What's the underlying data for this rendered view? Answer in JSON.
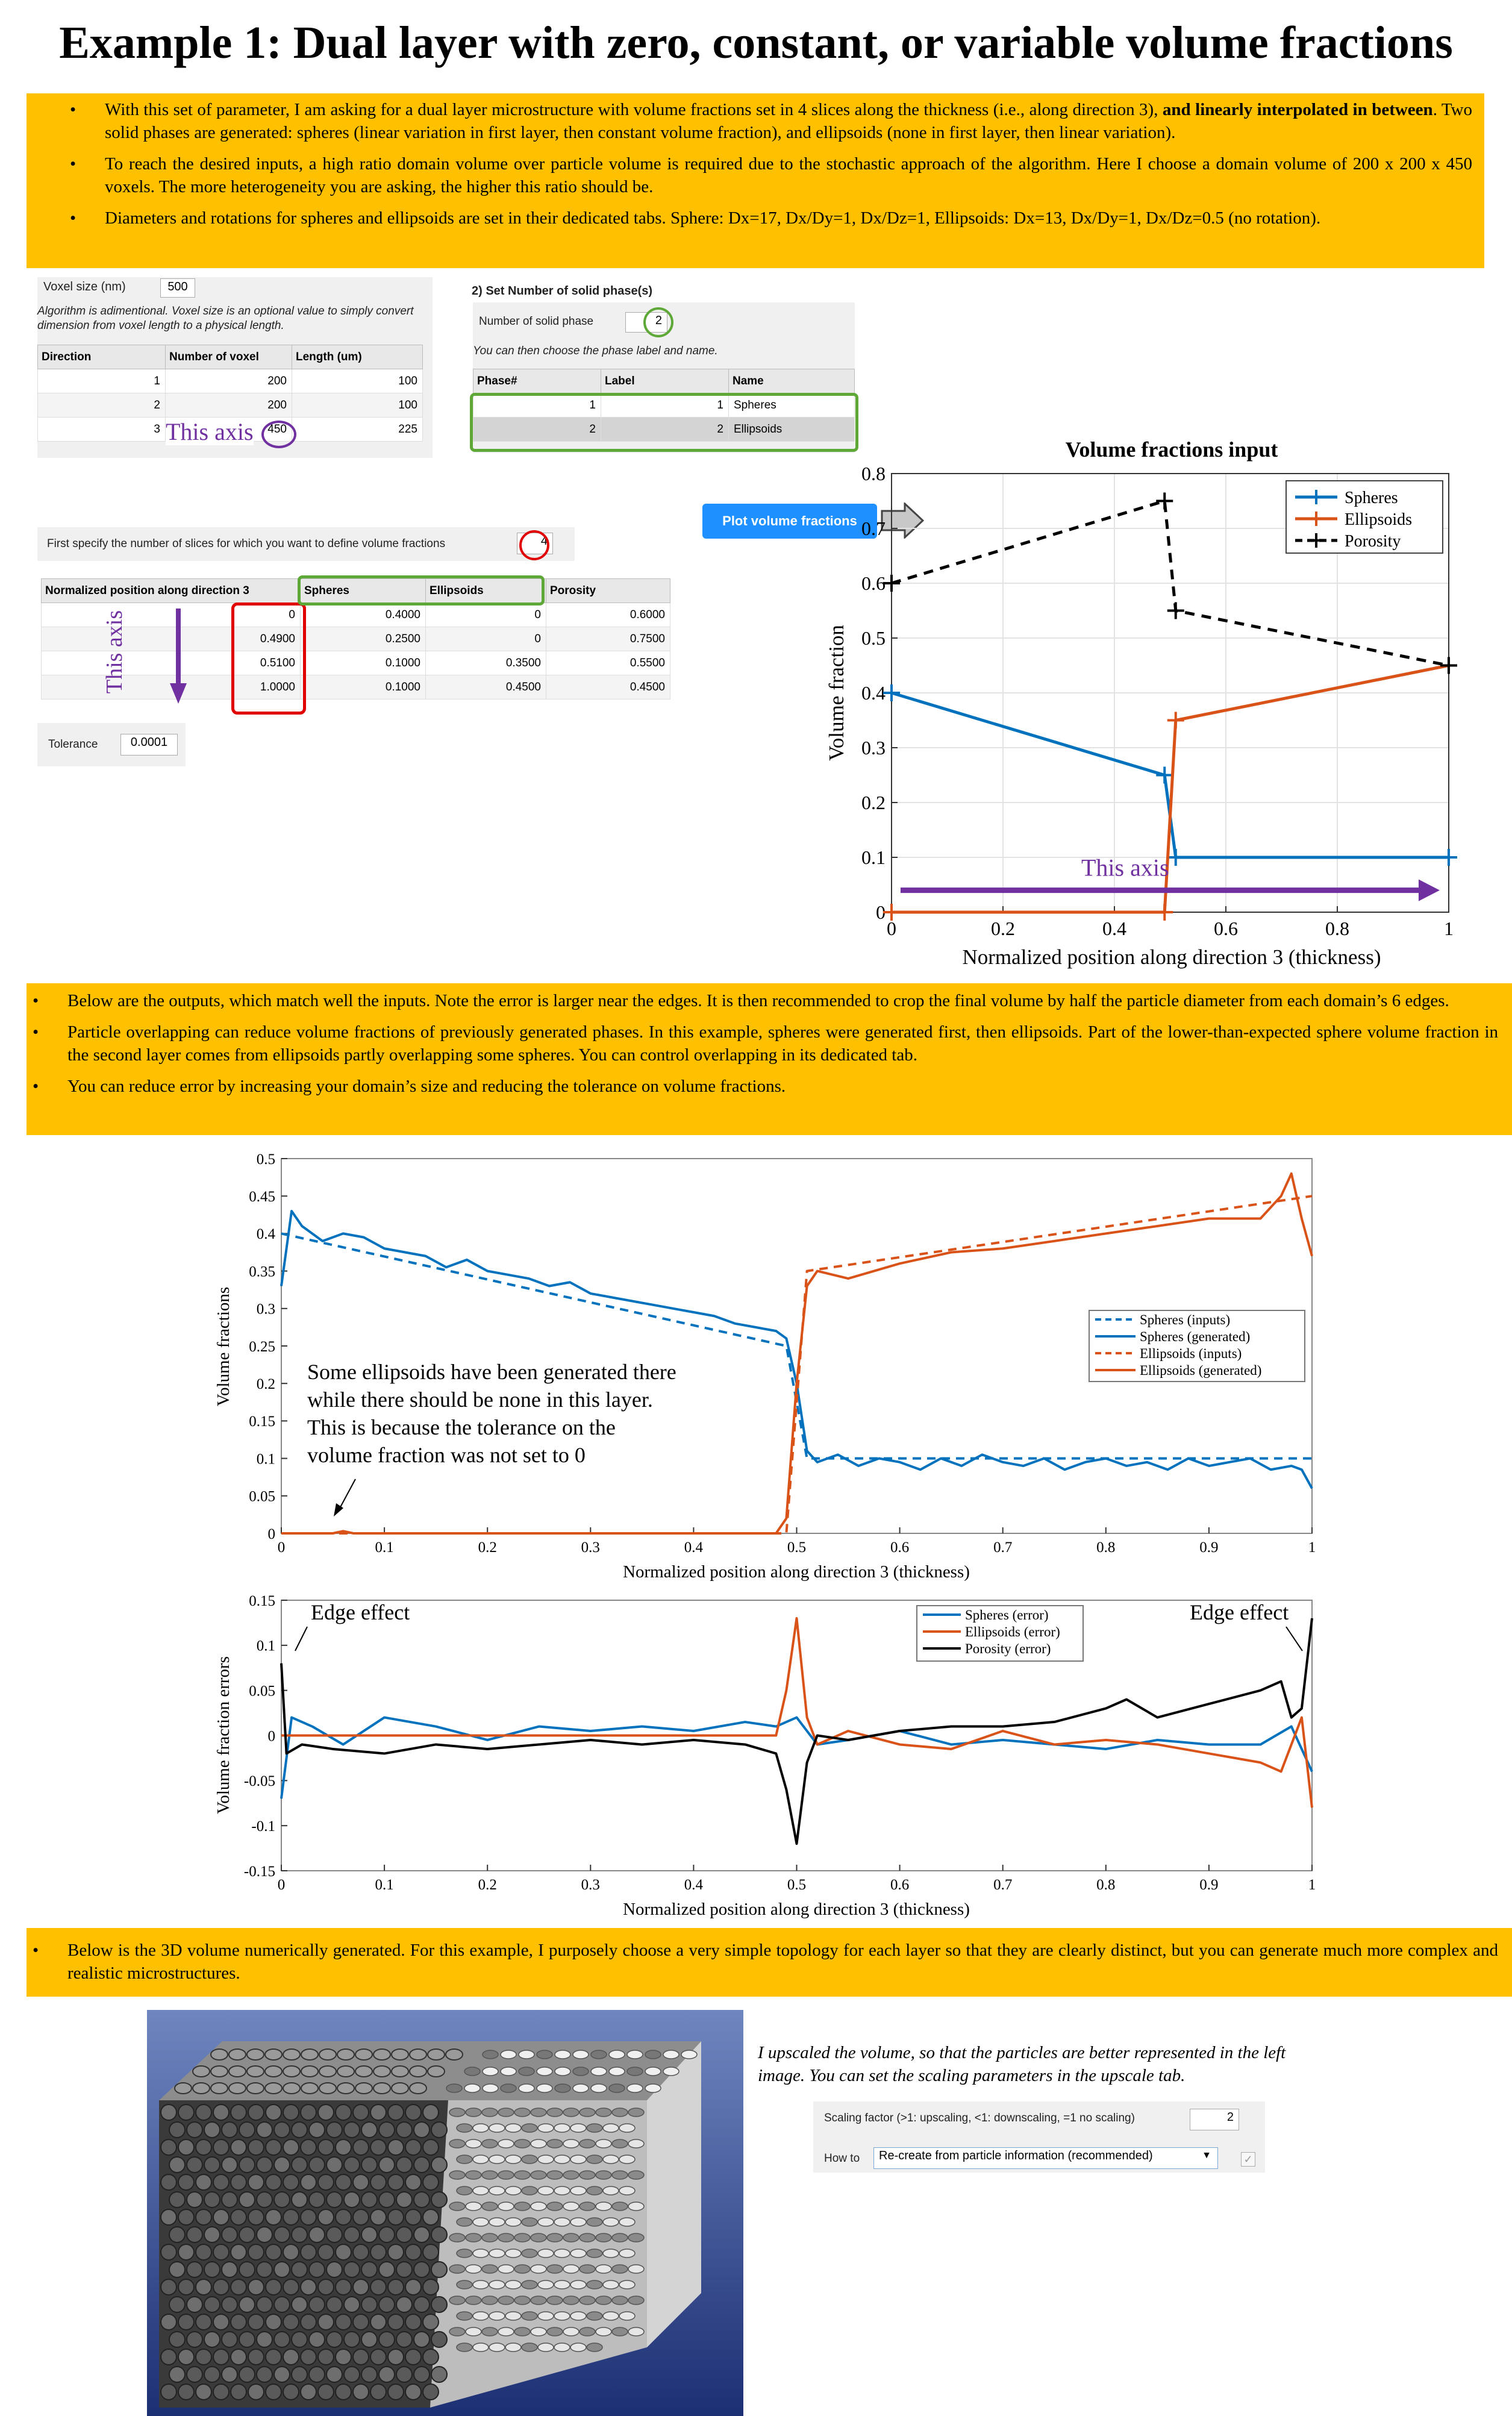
{
  "title": "Example 1: Dual layer with zero, constant, or variable volume fractions",
  "box1": {
    "b1_pre": "With this set of parameter, I am asking for a dual layer microstructure with volume fractions set in 4 slices along the thickness (i.e., along direction 3), ",
    "b1_bold": "and linearly interpolated in between",
    "b1_post": ". Two solid phases are generated: spheres (linear variation in first layer, then constant volume fraction), and ellipsoids (none in first layer, then linear variation).",
    "b2": "To reach the desired inputs, a high ratio domain volume over particle volume is required due to the stochastic approach of the algorithm. Here I choose a domain volume of 200 x 200 x 450 voxels. The more heterogeneity you are asking, the higher this ratio should be.",
    "b3": "Diameters and rotations for spheres and ellipsoids are set in their dedicated tabs. Sphere: Dx=17, Dx/Dy=1, Dx/Dz=1, Ellipsoids: Dx=13, Dx/Dy=1, Dx/Dz=0.5 (no rotation)."
  },
  "voxel": {
    "size_label": "Voxel size  (nm)",
    "size_value": "500",
    "note": "Algorithm is adimentional. Voxel size is an optional value to simply convert dimension from voxel length to a physical length.",
    "headers": [
      "Direction",
      "Number of voxel",
      "Length (um)"
    ],
    "rows": [
      [
        "1",
        "200",
        "100"
      ],
      [
        "2",
        "200",
        "100"
      ],
      [
        "3",
        "450",
        "225"
      ]
    ],
    "axis_note": "This axis"
  },
  "phases": {
    "heading": "2) Set Number of solid phase(s)",
    "count_label": "Number of solid phase",
    "count_value": "2",
    "hint": "You can then choose the phase label and name.",
    "headers": [
      "Phase#",
      "Label",
      "Name"
    ],
    "rows": [
      [
        "1",
        "1",
        "Spheres"
      ],
      [
        "2",
        "2",
        "Ellipsoids"
      ]
    ]
  },
  "slices": {
    "label": "First specify the number of slices for which you want to define volume fractions",
    "value": "4",
    "headers": [
      "Normalized position along direction 3",
      "Spheres",
      "Ellipsoids",
      "Porosity"
    ],
    "rows": [
      [
        "0",
        "0.4000",
        "0",
        "0.6000"
      ],
      [
        "0.4900",
        "0.2500",
        "0",
        "0.7500"
      ],
      [
        "0.5100",
        "0.1000",
        "0.3500",
        "0.5500"
      ],
      [
        "1.0000",
        "0.1000",
        "0.4500",
        "0.4500"
      ]
    ],
    "axis_note": "This axis",
    "tolerance_label": "Tolerance",
    "tolerance_value": "0.0001"
  },
  "plot_button": "Plot volume fractions",
  "chart1": {
    "title": "Volume fractions input",
    "xlabel": "Normalized position along direction 3 (thickness)",
    "ylabel": "Volume fraction",
    "xticks": [
      "0",
      "0.2",
      "0.4",
      "0.6",
      "0.8",
      "1"
    ],
    "yticks": [
      "0",
      "0.1",
      "0.2",
      "0.3",
      "0.4",
      "0.5",
      "0.6",
      "0.7",
      "0.8"
    ],
    "legend": [
      "Spheres",
      "Ellipsoids",
      "Porosity"
    ],
    "axis_note": "This axis"
  },
  "box2": {
    "b1": "Below are the outputs, which match well the inputs. Note the error is larger near the edges. It is then recommended to crop the final volume by half the particle diameter from each domain’s 6 edges.",
    "b2": "Particle overlapping can reduce volume fractions of previously generated phases. In this example, spheres were generated first, then ellipsoids. Part of the lower-than-expected sphere volume fraction in the second layer comes from ellipsoids partly overlapping some spheres. You can control overlapping in its dedicated tab.",
    "b3": "You can reduce error by increasing your domain’s size and reducing the tolerance on volume fractions."
  },
  "chart2": {
    "ylabel": "Volume fractions",
    "xlabel": "Normalized position along direction 3 (thickness)",
    "xticks": [
      "0",
      "0.1",
      "0.2",
      "0.3",
      "0.4",
      "0.5",
      "0.6",
      "0.7",
      "0.8",
      "0.9",
      "1"
    ],
    "yticks": [
      "0",
      "0.05",
      "0.1",
      "0.15",
      "0.2",
      "0.25",
      "0.3",
      "0.35",
      "0.4",
      "0.45",
      "0.5"
    ],
    "legend": [
      "Spheres (inputs)",
      "Spheres (generated)",
      "Ellipsoids (inputs)",
      "Ellipsoids (generated)"
    ],
    "annotation": [
      "Some ellipsoids have been generated there",
      "while there should be none in this layer.",
      "This is because the tolerance on the",
      "volume fraction was not set to 0"
    ]
  },
  "chart3": {
    "ylabel": "Volume fraction errors",
    "xlabel": "Normalized position along direction 3 (thickness)",
    "xticks": [
      "0",
      "0.1",
      "0.2",
      "0.3",
      "0.4",
      "0.5",
      "0.6",
      "0.7",
      "0.8",
      "0.9",
      "1"
    ],
    "yticks": [
      "0.15",
      "0.1",
      "0.05",
      "0",
      "-0.05",
      "-0.1",
      "-0.15"
    ],
    "legend": [
      "Spheres (error)",
      "Ellipsoids (error)",
      "Porosity (error)"
    ],
    "edge_left": "Edge effect",
    "edge_right": "Edge effect"
  },
  "box3": {
    "b1": "Below is the 3D volume numerically generated. For this example, I purposely choose a very simple topology for each layer so that they are clearly distinct, but you can generate much more complex and realistic microstructures."
  },
  "upscale": {
    "note": "I upscaled the volume, so that the particles are better represented in the left image. You can set the scaling parameters in the upscale tab.",
    "factor_label": "Scaling factor (>1: upscaling, <1: downscaling, =1 no scaling)",
    "factor_value": "2",
    "how_label": "How to",
    "how_value": "Re-create from particle information (recommended)"
  },
  "chart_data": [
    {
      "type": "line",
      "title": "Volume fractions input",
      "xlabel": "Normalized position along direction 3 (thickness)",
      "ylabel": "Volume fraction",
      "xlim": [
        0,
        1
      ],
      "ylim": [
        0,
        0.8
      ],
      "series": [
        {
          "name": "Spheres",
          "color": "#0072bd",
          "x": [
            0,
            0.49,
            0.51,
            1
          ],
          "y": [
            0.4,
            0.25,
            0.1,
            0.1
          ]
        },
        {
          "name": "Ellipsoids",
          "color": "#d95319",
          "x": [
            0,
            0.49,
            0.51,
            1
          ],
          "y": [
            0,
            0,
            0.35,
            0.45
          ]
        },
        {
          "name": "Porosity",
          "color": "#000000",
          "x": [
            0,
            0.49,
            0.51,
            1
          ],
          "y": [
            0.6,
            0.75,
            0.55,
            0.45
          ]
        }
      ]
    },
    {
      "type": "line",
      "xlabel": "Normalized position along direction 3 (thickness)",
      "ylabel": "Volume fractions",
      "xlim": [
        0,
        1
      ],
      "ylim": [
        0,
        0.5
      ],
      "series": [
        {
          "name": "Spheres (inputs)",
          "color": "#0072bd",
          "dashed": true,
          "x": [
            0,
            0.49,
            0.51,
            1
          ],
          "y": [
            0.4,
            0.25,
            0.1,
            0.1
          ]
        },
        {
          "name": "Spheres (generated)",
          "color": "#0072bd",
          "x": [
            0,
            0.01,
            0.02,
            0.04,
            0.06,
            0.08,
            0.1,
            0.12,
            0.14,
            0.16,
            0.18,
            0.2,
            0.22,
            0.24,
            0.26,
            0.28,
            0.3,
            0.32,
            0.34,
            0.36,
            0.38,
            0.4,
            0.42,
            0.44,
            0.46,
            0.48,
            0.49,
            0.5,
            0.51,
            0.52,
            0.54,
            0.56,
            0.58,
            0.6,
            0.62,
            0.64,
            0.66,
            0.68,
            0.7,
            0.72,
            0.74,
            0.76,
            0.78,
            0.8,
            0.82,
            0.84,
            0.86,
            0.88,
            0.9,
            0.92,
            0.94,
            0.96,
            0.98,
            0.99,
            1
          ],
          "y": [
            0.33,
            0.43,
            0.41,
            0.39,
            0.4,
            0.395,
            0.38,
            0.375,
            0.37,
            0.355,
            0.365,
            0.35,
            0.345,
            0.34,
            0.33,
            0.335,
            0.32,
            0.315,
            0.31,
            0.305,
            0.3,
            0.295,
            0.29,
            0.28,
            0.275,
            0.27,
            0.26,
            0.2,
            0.11,
            0.095,
            0.105,
            0.09,
            0.1,
            0.095,
            0.085,
            0.1,
            0.09,
            0.105,
            0.095,
            0.09,
            0.1,
            0.085,
            0.095,
            0.1,
            0.09,
            0.095,
            0.085,
            0.1,
            0.09,
            0.095,
            0.1,
            0.085,
            0.09,
            0.085,
            0.06
          ]
        },
        {
          "name": "Ellipsoids (inputs)",
          "color": "#d95319",
          "dashed": true,
          "x": [
            0,
            0.49,
            0.51,
            1
          ],
          "y": [
            0,
            0,
            0.35,
            0.45
          ]
        },
        {
          "name": "Ellipsoids (generated)",
          "color": "#d95319",
          "x": [
            0,
            0.05,
            0.06,
            0.07,
            0.48,
            0.49,
            0.5,
            0.51,
            0.52,
            0.55,
            0.6,
            0.65,
            0.7,
            0.75,
            0.8,
            0.85,
            0.9,
            0.95,
            0.97,
            0.98,
            0.99,
            1
          ],
          "y": [
            0,
            0,
            0.003,
            0,
            0,
            0.02,
            0.2,
            0.33,
            0.35,
            0.34,
            0.36,
            0.375,
            0.38,
            0.39,
            0.4,
            0.41,
            0.42,
            0.42,
            0.45,
            0.48,
            0.42,
            0.37
          ]
        }
      ]
    },
    {
      "type": "line",
      "xlabel": "Normalized position along direction 3 (thickness)",
      "ylabel": "Volume fraction errors",
      "xlim": [
        0,
        1
      ],
      "ylim": [
        -0.15,
        0.15
      ],
      "series": [
        {
          "name": "Spheres (error)",
          "color": "#0072bd",
          "x": [
            0,
            0.01,
            0.03,
            0.06,
            0.1,
            0.15,
            0.2,
            0.25,
            0.3,
            0.35,
            0.4,
            0.45,
            0.48,
            0.5,
            0.52,
            0.55,
            0.6,
            0.65,
            0.7,
            0.75,
            0.8,
            0.85,
            0.9,
            0.95,
            0.98,
            1
          ],
          "y": [
            -0.07,
            0.02,
            0.01,
            -0.01,
            0.02,
            0.01,
            -0.005,
            0.01,
            0.005,
            0.01,
            0.005,
            0.015,
            0.01,
            0.02,
            -0.01,
            -0.005,
            0.005,
            -0.01,
            -0.005,
            -0.01,
            -0.015,
            -0.005,
            -0.01,
            -0.01,
            0.01,
            -0.04
          ]
        },
        {
          "name": "Ellipsoids (error)",
          "color": "#d95319",
          "x": [
            0,
            0.48,
            0.49,
            0.5,
            0.51,
            0.52,
            0.55,
            0.6,
            0.65,
            0.7,
            0.75,
            0.8,
            0.85,
            0.9,
            0.95,
            0.97,
            0.99,
            1
          ],
          "y": [
            0,
            0,
            0.05,
            0.13,
            0.02,
            -0.01,
            0.005,
            -0.01,
            -0.015,
            0.005,
            -0.01,
            -0.005,
            -0.01,
            -0.02,
            -0.03,
            -0.04,
            0.02,
            -0.08
          ]
        },
        {
          "name": "Porosity (error)",
          "color": "#000000",
          "x": [
            0,
            0.005,
            0.02,
            0.05,
            0.1,
            0.15,
            0.2,
            0.25,
            0.3,
            0.35,
            0.4,
            0.45,
            0.48,
            0.49,
            0.5,
            0.51,
            0.52,
            0.55,
            0.6,
            0.65,
            0.7,
            0.75,
            0.8,
            0.82,
            0.85,
            0.9,
            0.95,
            0.97,
            0.98,
            0.99,
            1
          ],
          "y": [
            0.08,
            -0.02,
            -0.01,
            -0.015,
            -0.02,
            -0.01,
            -0.015,
            -0.01,
            -0.005,
            -0.01,
            -0.005,
            -0.01,
            -0.02,
            -0.06,
            -0.12,
            -0.03,
            0.0,
            -0.005,
            0.005,
            0.01,
            0.01,
            0.015,
            0.03,
            0.04,
            0.02,
            0.035,
            0.05,
            0.06,
            0.02,
            0.03,
            0.13
          ]
        }
      ]
    }
  ]
}
